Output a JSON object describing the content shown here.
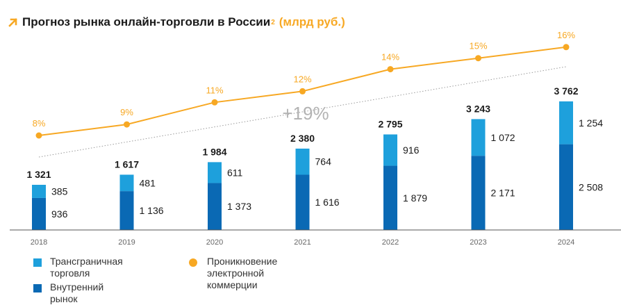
{
  "title": {
    "main": "Прогноз рынка онлайн-торговли в России",
    "sup": "2",
    "unit": "(млрд руб.)"
  },
  "colors": {
    "cross_border": "#1ea0dc",
    "domestic": "#0a69b4",
    "penetration": "#f7a823",
    "axis": "#555555",
    "trend": "#9a9a9a",
    "cagr_text": "#b3b3b3"
  },
  "chart_data": {
    "type": "bar",
    "stacked": true,
    "categories": [
      "2018",
      "2019",
      "2020",
      "2021",
      "2022",
      "2023",
      "2024"
    ],
    "series": [
      {
        "name": "Внутренний рынок",
        "values": [
          936,
          1136,
          1373,
          1616,
          1879,
          2171,
          2508
        ],
        "labels": [
          "936",
          "1 136",
          "1 373",
          "1 616",
          "1 879",
          "2 171",
          "2 508"
        ]
      },
      {
        "name": "Трансграничная торговля",
        "values": [
          385,
          481,
          611,
          764,
          916,
          1072,
          1254
        ],
        "labels": [
          "385",
          "481",
          "611",
          "764",
          "916",
          "1 072",
          "1 254"
        ]
      }
    ],
    "totals": [
      1321,
      1617,
      1984,
      2380,
      2795,
      3243,
      3762
    ],
    "total_labels": [
      "1 321",
      "1 617",
      "1 984",
      "2 380",
      "2 795",
      "3 243",
      "3 762"
    ],
    "line": {
      "name": "Проникновение электронной коммерции",
      "values": [
        8,
        9,
        11,
        12,
        14,
        15,
        16
      ],
      "labels": [
        "8%",
        "9%",
        "11%",
        "12%",
        "14%",
        "15%",
        "16%"
      ]
    },
    "cagr_label": "+19%"
  },
  "legend": {
    "cross_border_line1": "Трансграничная",
    "cross_border_line2": "торговля",
    "domestic": "Внутренний рынок",
    "penetration_line1": "Проникновение электронной",
    "penetration_line2": "коммерции"
  }
}
